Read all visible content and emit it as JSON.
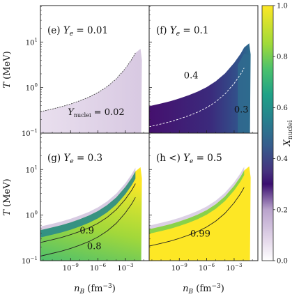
{
  "chart_data": {
    "type": "heatmap",
    "colormap": "viridis",
    "colorbar": {
      "label_main": "X",
      "label_sub": "nuclei",
      "min": 0.0,
      "max": 1.0,
      "ticks": [
        "0.0",
        "0.2",
        "0.4",
        "0.6",
        "0.8",
        "1.0"
      ]
    },
    "x_axis": {
      "label_main": "n",
      "label_sub": "B",
      "label_unit": "(fm",
      "label_exp": "−3",
      "label_close": ")",
      "scale": "log",
      "range_log10": [
        -12.3,
        -0.4
      ],
      "ticks": [
        {
          "base": "10",
          "exp": "−9",
          "log10": -9
        },
        {
          "base": "10",
          "exp": "−6",
          "log10": -6
        },
        {
          "base": "10",
          "exp": "−3",
          "log10": -3
        }
      ]
    },
    "y_axis": {
      "label_main": "T",
      "label_unit": "(MeV)",
      "scale": "log",
      "range_log10": [
        -1,
        1.8
      ],
      "ticks": [
        {
          "base": "10",
          "exp": "−1",
          "log10": -1
        },
        {
          "base": "10",
          "exp": "0",
          "log10": 0
        },
        {
          "base": "10",
          "exp": "1",
          "log10": 1
        }
      ]
    },
    "panels": [
      {
        "label_prefix": "(e) ",
        "label_y": "Y",
        "label_sub": "e",
        "label_value": " = 0.01",
        "Ye": 0.01,
        "contours": [
          {
            "level": 0.02,
            "label_main": "Y",
            "label_sub": "nuclei",
            "label_value": " = 0.02"
          }
        ]
      },
      {
        "label_prefix": "(f) ",
        "label_y": "Y",
        "label_sub": "e",
        "label_value": " = 0.1",
        "Ye": 0.1,
        "contours": [
          {
            "level": 0.4,
            "label": "0.4"
          },
          {
            "level": 0.3,
            "label": "0.3"
          }
        ]
      },
      {
        "label_prefix": "(g) ",
        "label_y": "Y",
        "label_sub": "e",
        "label_value": " = 0.3",
        "Ye": 0.3,
        "contours": [
          {
            "level": 0.9,
            "label": "0.9"
          },
          {
            "level": 0.8,
            "label": "0.8"
          }
        ]
      },
      {
        "label_prefix": "(h <) ",
        "label_y": "Y",
        "label_sub": "e",
        "label_value": " = 0.5",
        "Ye": 0.5,
        "contours": [
          {
            "level": 0.99,
            "label": "0.99"
          }
        ]
      }
    ]
  }
}
